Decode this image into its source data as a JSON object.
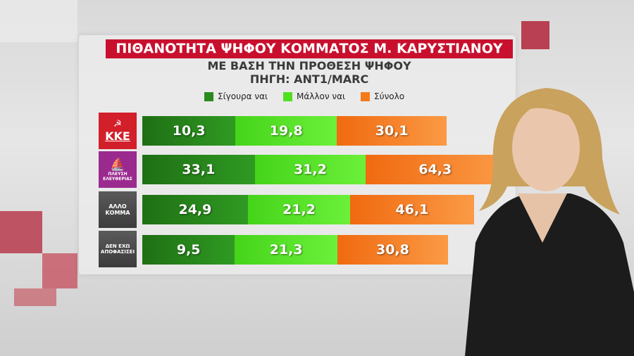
{
  "title": "ΠΙΘΑΝΟΤΗΤΑ ΨΗΦΟΥ ΚΟΜΜΑΤΟΣ Μ. ΚΑΡΥΣΤΙΑΝΟΥ",
  "subtitle": "ΜΕ ΒΑΣΗ ΤΗΝ ΠΡΟΘΕΣΗ ΨΗΦΟΥ",
  "source": "ΠΗΓΗ: ANT1/MARC",
  "colors": {
    "title_bg": "#c8102e",
    "sure": "#2a8a1e",
    "likely": "#4fe01f",
    "total": "#f57a1a"
  },
  "chart_data": {
    "type": "bar",
    "stacked": true,
    "orientation": "horizontal",
    "categories": [
      "ΚΚΕ",
      "ΠΛΕΥΣΗ ΕΛΕΥΘΕΡΙΑΣ",
      "ΑΛΛΟ ΚΟΜΜΑ",
      "ΔΕΝ ΕΧΩ ΑΠΟΦΑΣΙΣΕΙ"
    ],
    "series": [
      {
        "name": "Σίγουρα ναι",
        "values": [
          "10,3",
          "33,1",
          "24,9",
          "9,5"
        ]
      },
      {
        "name": "Μάλλον ναι",
        "values": [
          "19,8",
          "31,2",
          "21,2",
          "21,3"
        ]
      },
      {
        "name": "Σύνολο",
        "values": [
          "30,1",
          "64,3",
          "46,1",
          "30,8"
        ]
      }
    ],
    "legend": "top",
    "grid": false
  },
  "logos": {
    "kke": "ΚΚΕ",
    "plefsi": [
      "ΠΛΕΥΣΗ",
      "ΕΛΕΥΘΕΡΙΑΣ"
    ],
    "allo": [
      "ΑΛΛΟ",
      "ΚΟΜΜΑ"
    ],
    "den": [
      "ΔΕΝ ΕΧΩ",
      "ΑΠΟΦΑΣΙΣΕΙ"
    ]
  }
}
